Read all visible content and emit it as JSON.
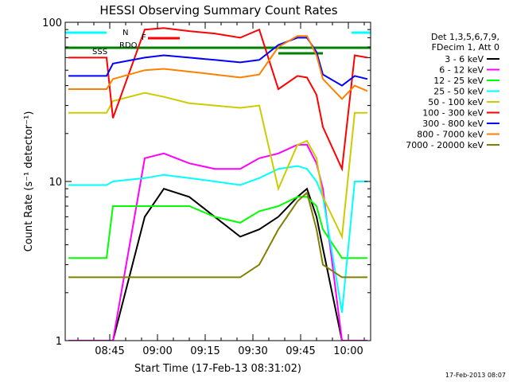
{
  "chart_data": {
    "type": "line",
    "title": "HESSI Observing Summary Count Rates",
    "xlabel": "Start Time (17-Feb-13 08:31:02)",
    "ylabel": "Count Rate (s⁻¹ detector⁻¹)",
    "x_range": [
      "08:31",
      "10:07"
    ],
    "ylim": [
      1,
      100
    ],
    "y_scale": "log",
    "x_tick_labels": [
      "08:45",
      "09:00",
      "09:15",
      "09:30",
      "09:45",
      "10:00"
    ],
    "y_tick_labels": [
      "1",
      "10",
      "100"
    ],
    "grid": false,
    "legend_position": "right",
    "legend_header": [
      "Det 1,3,5,6,7,9,",
      "FDecim 1, Att 0"
    ],
    "footer": "17-Feb-2013 08:07",
    "flag_labels": [
      "N",
      "F",
      "RDO",
      "SSS"
    ],
    "flag_colors": [
      "#00ffff",
      "#ff0000",
      "#008000",
      "#008000"
    ],
    "series": [
      {
        "name": "3 - 6 keV",
        "color": "#000000",
        "x": [
          "08:32",
          "08:44",
          "08:46",
          "08:56",
          "09:02",
          "09:10",
          "09:18",
          "09:26",
          "09:32",
          "09:38",
          "09:44",
          "09:47",
          "09:50",
          "09:52",
          "09:58",
          "10:02",
          "10:06"
        ],
        "y": [
          1.0,
          1.0,
          1.0,
          6.0,
          9.0,
          8.0,
          6.0,
          4.5,
          5.0,
          6.0,
          8.0,
          9.0,
          6.0,
          3.8,
          1.0,
          1.0,
          1.0
        ]
      },
      {
        "name": "6 - 12 keV",
        "color": "#ff00ff",
        "x": [
          "08:32",
          "08:44",
          "08:46",
          "08:56",
          "09:02",
          "09:10",
          "09:18",
          "09:26",
          "09:32",
          "09:38",
          "09:44",
          "09:47",
          "09:50",
          "09:52",
          "09:58",
          "10:02",
          "10:06"
        ],
        "y": [
          1.0,
          1.0,
          1.0,
          14.0,
          15.0,
          13.0,
          12.0,
          12.0,
          14.0,
          15.0,
          17.0,
          17.0,
          13.0,
          9.0,
          1.0,
          1.0,
          1.0
        ]
      },
      {
        "name": "12 - 25 keV",
        "color": "#00ff00",
        "x": [
          "08:32",
          "08:44",
          "08:46",
          "08:56",
          "09:02",
          "09:10",
          "09:18",
          "09:26",
          "09:32",
          "09:38",
          "09:44",
          "09:47",
          "09:50",
          "09:52",
          "09:58",
          "10:02",
          "10:06"
        ],
        "y": [
          3.3,
          3.3,
          7.0,
          7.0,
          7.0,
          7.0,
          6.0,
          5.5,
          6.5,
          7.0,
          8.0,
          8.0,
          7.0,
          5.0,
          3.3,
          3.3,
          3.3
        ]
      },
      {
        "name": "25 - 50 keV",
        "color": "#00ffff",
        "x": [
          "08:32",
          "08:44",
          "08:46",
          "08:56",
          "09:02",
          "09:10",
          "09:18",
          "09:26",
          "09:32",
          "09:38",
          "09:44",
          "09:47",
          "09:50",
          "09:52",
          "09:58",
          "10:02",
          "10:06"
        ],
        "y": [
          9.5,
          9.5,
          10.0,
          10.5,
          11.0,
          10.5,
          10.0,
          9.5,
          10.5,
          12.0,
          12.5,
          12.0,
          10.0,
          8.0,
          1.5,
          10.0,
          10.0
        ]
      },
      {
        "name": "50 - 100 keV",
        "color": "#cccc00",
        "x": [
          "08:32",
          "08:44",
          "08:46",
          "08:56",
          "09:02",
          "09:10",
          "09:18",
          "09:26",
          "09:32",
          "09:38",
          "09:44",
          "09:47",
          "09:50",
          "09:52",
          "09:58",
          "10:02",
          "10:06"
        ],
        "y": [
          27.0,
          27.0,
          32.0,
          36.0,
          34.0,
          31.0,
          30.0,
          29.0,
          30.0,
          9.0,
          17.0,
          18.0,
          14.0,
          8.0,
          4.5,
          27.0,
          27.0
        ]
      },
      {
        "name": "100 - 300 keV",
        "color": "#ff0000",
        "x": [
          "08:32",
          "08:44",
          "08:46",
          "08:56",
          "09:02",
          "09:10",
          "09:18",
          "09:26",
          "09:32",
          "09:38",
          "09:44",
          "09:47",
          "09:50",
          "09:52",
          "09:58",
          "10:02",
          "10:06"
        ],
        "y": [
          60.0,
          60.0,
          25.0,
          90.0,
          92.0,
          88.0,
          85.0,
          80.0,
          90.0,
          38.0,
          46.0,
          45.0,
          35.0,
          22.0,
          12.0,
          62.0,
          60.0
        ]
      },
      {
        "name": "300 - 800 keV",
        "color": "#0000ff",
        "x": [
          "08:32",
          "08:44",
          "08:46",
          "08:56",
          "09:02",
          "09:10",
          "09:18",
          "09:26",
          "09:32",
          "09:38",
          "09:44",
          "09:47",
          "09:50",
          "09:52",
          "09:58",
          "10:02",
          "10:06"
        ],
        "y": [
          46.0,
          46.0,
          55.0,
          60.0,
          62.0,
          60.0,
          58.0,
          56.0,
          58.0,
          72.0,
          80.0,
          80.0,
          65.0,
          47.0,
          40.0,
          46.0,
          44.0
        ]
      },
      {
        "name": "800 - 7000 keV",
        "color": "#ff8000",
        "x": [
          "08:32",
          "08:44",
          "08:46",
          "08:56",
          "09:02",
          "09:10",
          "09:18",
          "09:26",
          "09:32",
          "09:38",
          "09:44",
          "09:47",
          "09:50",
          "09:52",
          "09:58",
          "10:02",
          "10:06"
        ],
        "y": [
          38.0,
          38.0,
          44.0,
          50.0,
          51.0,
          49.0,
          47.0,
          45.0,
          47.0,
          70.0,
          82.0,
          82.0,
          62.0,
          44.0,
          33.0,
          40.0,
          37.0
        ]
      },
      {
        "name": "7000 - 20000 keV",
        "color": "#808000",
        "x": [
          "08:32",
          "08:44",
          "08:46",
          "08:56",
          "09:02",
          "09:10",
          "09:18",
          "09:26",
          "09:32",
          "09:38",
          "09:44",
          "09:47",
          "09:50",
          "09:52",
          "09:58",
          "10:02",
          "10:06"
        ],
        "y": [
          2.5,
          2.5,
          2.5,
          2.5,
          2.5,
          2.5,
          2.5,
          2.5,
          3.0,
          5.0,
          7.5,
          8.5,
          5.0,
          3.0,
          2.5,
          2.5,
          2.5
        ]
      }
    ]
  }
}
